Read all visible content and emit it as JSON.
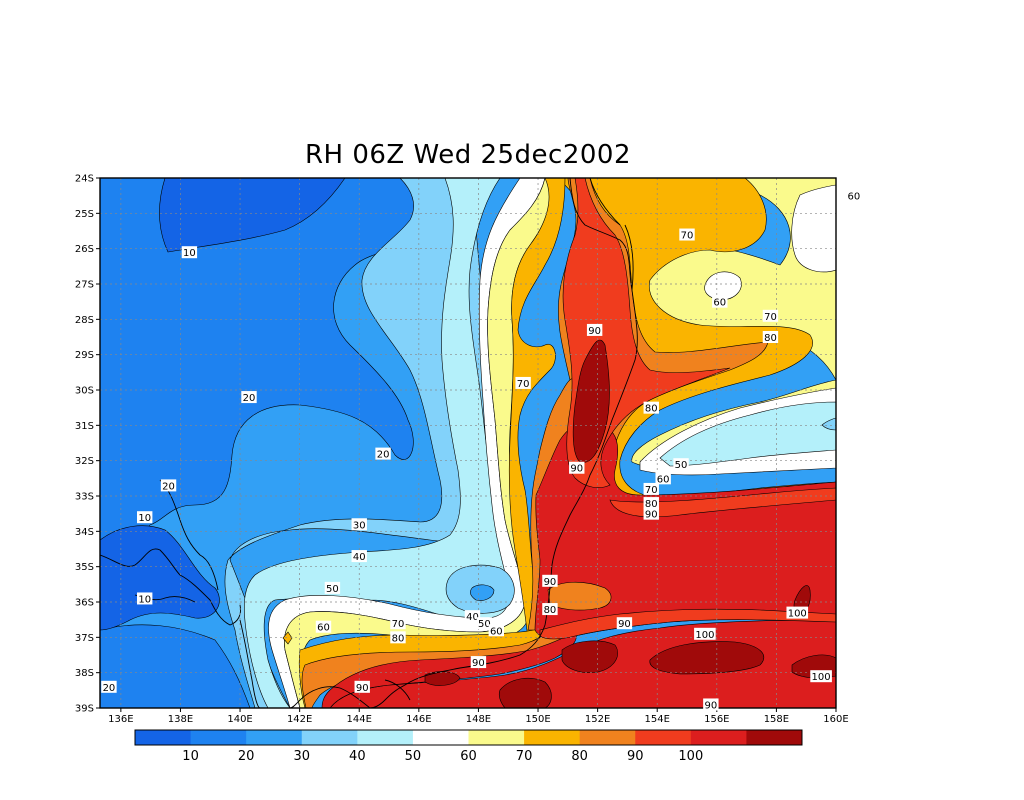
{
  "title": "RH 06Z Wed 25dec2002",
  "colors": {
    "c0": "#1464e6",
    "c1": "#1e82f0",
    "c2": "#32a0f5",
    "c3": "#82d2fa",
    "c4": "#b4f0fa",
    "c5": "#ffffff",
    "c6": "#fafa8c",
    "c7": "#fab400",
    "c8": "#f0821e",
    "c9": "#f03c1e",
    "c10": "#dc1e1e",
    "c11": "#a00a0a"
  },
  "lat_ticks": [
    "24S",
    "25S",
    "26S",
    "27S",
    "28S",
    "29S",
    "30S",
    "31S",
    "32S",
    "33S",
    "34S",
    "35S",
    "36S",
    "37S",
    "38S",
    "39S"
  ],
  "lon_ticks": [
    "136E",
    "138E",
    "140E",
    "142E",
    "144E",
    "146E",
    "148E",
    "150E",
    "152E",
    "154E",
    "156E",
    "158E",
    "160E"
  ],
  "colorbar_labels": [
    "10",
    "20",
    "30",
    "40",
    "50",
    "60",
    "70",
    "80",
    "90",
    "100"
  ],
  "contour_labels": [
    {
      "text": "10",
      "lon": 138.3,
      "lat": -26.1
    },
    {
      "text": "20",
      "lon": 140.3,
      "lat": -30.2
    },
    {
      "text": "20",
      "lon": 144.8,
      "lat": -31.8
    },
    {
      "text": "20",
      "lon": 137.6,
      "lat": -32.7
    },
    {
      "text": "10",
      "lon": 136.8,
      "lat": -33.6
    },
    {
      "text": "10",
      "lon": 136.8,
      "lat": -35.9
    },
    {
      "text": "20",
      "lon": 135.6,
      "lat": -38.4
    },
    {
      "text": "30",
      "lon": 144.0,
      "lat": -33.8
    },
    {
      "text": "40",
      "lon": 144.0,
      "lat": -34.7
    },
    {
      "text": "50",
      "lon": 143.1,
      "lat": -35.6
    },
    {
      "text": "60",
      "lon": 142.8,
      "lat": -36.7
    },
    {
      "text": "70",
      "lon": 145.3,
      "lat": -36.6
    },
    {
      "text": "80",
      "lon": 145.3,
      "lat": -37.0
    },
    {
      "text": "40",
      "lon": 147.8,
      "lat": -36.4
    },
    {
      "text": "50",
      "lon": 148.2,
      "lat": -36.6
    },
    {
      "text": "60",
      "lon": 148.6,
      "lat": -36.8
    },
    {
      "text": "90",
      "lon": 148.0,
      "lat": -37.7
    },
    {
      "text": "90",
      "lon": 144.1,
      "lat": -38.4
    },
    {
      "text": "70",
      "lon": 149.5,
      "lat": -29.8
    },
    {
      "text": "90",
      "lon": 151.9,
      "lat": -28.3
    },
    {
      "text": "90",
      "lon": 151.3,
      "lat": -32.2
    },
    {
      "text": "90",
      "lon": 150.4,
      "lat": -35.4
    },
    {
      "text": "80",
      "lon": 150.4,
      "lat": -36.2
    },
    {
      "text": "90",
      "lon": 152.9,
      "lat": -36.6
    },
    {
      "text": "100",
      "lon": 155.6,
      "lat": -36.9
    },
    {
      "text": "100",
      "lon": 158.7,
      "lat": -36.3
    },
    {
      "text": "100",
      "lon": 159.5,
      "lat": -38.1
    },
    {
      "text": "90",
      "lon": 155.8,
      "lat": -38.9
    },
    {
      "text": "70",
      "lon": 155.0,
      "lat": -25.6
    },
    {
      "text": "60",
      "lon": 160.6,
      "lat": -24.5
    },
    {
      "text": "60",
      "lon": 156.1,
      "lat": -27.5
    },
    {
      "text": "70",
      "lon": 157.8,
      "lat": -27.9
    },
    {
      "text": "80",
      "lon": 157.8,
      "lat": -28.5
    },
    {
      "text": "80",
      "lon": 153.8,
      "lat": -30.5
    },
    {
      "text": "50",
      "lon": 154.8,
      "lat": -32.1
    },
    {
      "text": "60",
      "lon": 154.2,
      "lat": -32.5
    },
    {
      "text": "70",
      "lon": 153.8,
      "lat": -32.8
    },
    {
      "text": "80",
      "lon": 153.8,
      "lat": -33.2
    },
    {
      "text": "90",
      "lon": 153.8,
      "lat": -33.5
    }
  ]
}
